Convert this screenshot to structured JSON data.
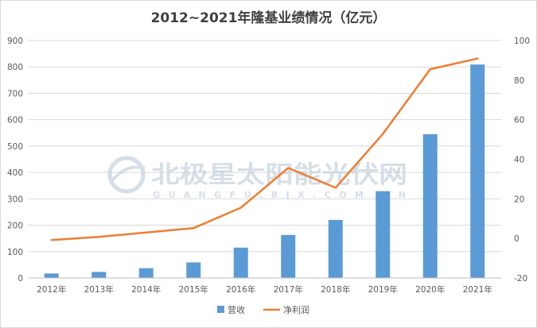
{
  "chart_data": {
    "type": "bar",
    "title": "2012~2021年隆基业绩情况（亿元）",
    "categories": [
      "2012年",
      "2013年",
      "2014年",
      "2015年",
      "2016年",
      "2017年",
      "2018年",
      "2019年",
      "2020年",
      "2021年"
    ],
    "series": [
      {
        "name": "营收",
        "type": "bar",
        "axis": "left",
        "color": "#5b9bd5",
        "values": [
          17,
          23,
          37,
          59,
          115,
          163,
          220,
          329,
          545,
          809
        ]
      },
      {
        "name": "净利润",
        "type": "line",
        "axis": "right",
        "color": "#ed7d31",
        "values": [
          -0.8,
          0.8,
          3.0,
          5.2,
          15.5,
          35.6,
          25.6,
          52.8,
          85.5,
          90.9
        ]
      }
    ],
    "yaxis_left": {
      "min": 0,
      "max": 900,
      "ticks": [
        "0",
        "100",
        "200",
        "300",
        "400",
        "500",
        "600",
        "700",
        "800",
        "900"
      ]
    },
    "yaxis_right": {
      "min": -20,
      "max": 100,
      "ticks": [
        "-20",
        "0",
        "20",
        "40",
        "60",
        "80",
        "100"
      ]
    },
    "grid": true,
    "legend_position": "bottom"
  },
  "watermark": {
    "name": "北极星太阳能光伏网",
    "sub": "GUANGFU.BJX.COM.CN"
  }
}
